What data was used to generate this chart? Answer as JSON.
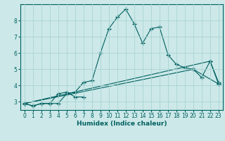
{
  "xlabel": "Humidex (Indice chaleur)",
  "bg_color": "#cce8e8",
  "line_color": "#006060",
  "grid_color": "#aad4d4",
  "xlim": [
    -0.5,
    23.5
  ],
  "ylim": [
    2.5,
    9.0
  ],
  "yticks": [
    3,
    4,
    5,
    6,
    7,
    8
  ],
  "xticks": [
    0,
    1,
    2,
    3,
    4,
    5,
    6,
    7,
    8,
    9,
    10,
    11,
    12,
    13,
    14,
    15,
    16,
    17,
    18,
    19,
    20,
    21,
    22,
    23
  ],
  "series": [
    {
      "x": [
        0,
        1,
        2,
        3,
        4,
        5,
        6,
        7,
        8,
        9,
        10,
        11,
        12,
        13,
        14,
        15,
        16,
        17,
        18,
        19,
        20,
        21,
        22,
        23
      ],
      "y": [
        2.9,
        2.75,
        2.9,
        2.9,
        2.9,
        3.5,
        3.6,
        4.2,
        4.3,
        6.0,
        7.5,
        8.2,
        8.7,
        7.8,
        6.6,
        7.5,
        7.6,
        5.9,
        5.3,
        5.1,
        5.0,
        4.5,
        5.5,
        4.2
      ]
    },
    {
      "x": [
        0,
        1,
        2,
        3,
        4,
        5,
        6,
        7
      ],
      "y": [
        2.9,
        2.75,
        2.9,
        2.9,
        3.5,
        3.6,
        3.3,
        3.3
      ]
    },
    {
      "x": [
        0,
        20,
        23
      ],
      "y": [
        2.9,
        5.0,
        4.1
      ]
    },
    {
      "x": [
        0,
        22,
        23
      ],
      "y": [
        2.9,
        5.5,
        4.1
      ]
    }
  ]
}
